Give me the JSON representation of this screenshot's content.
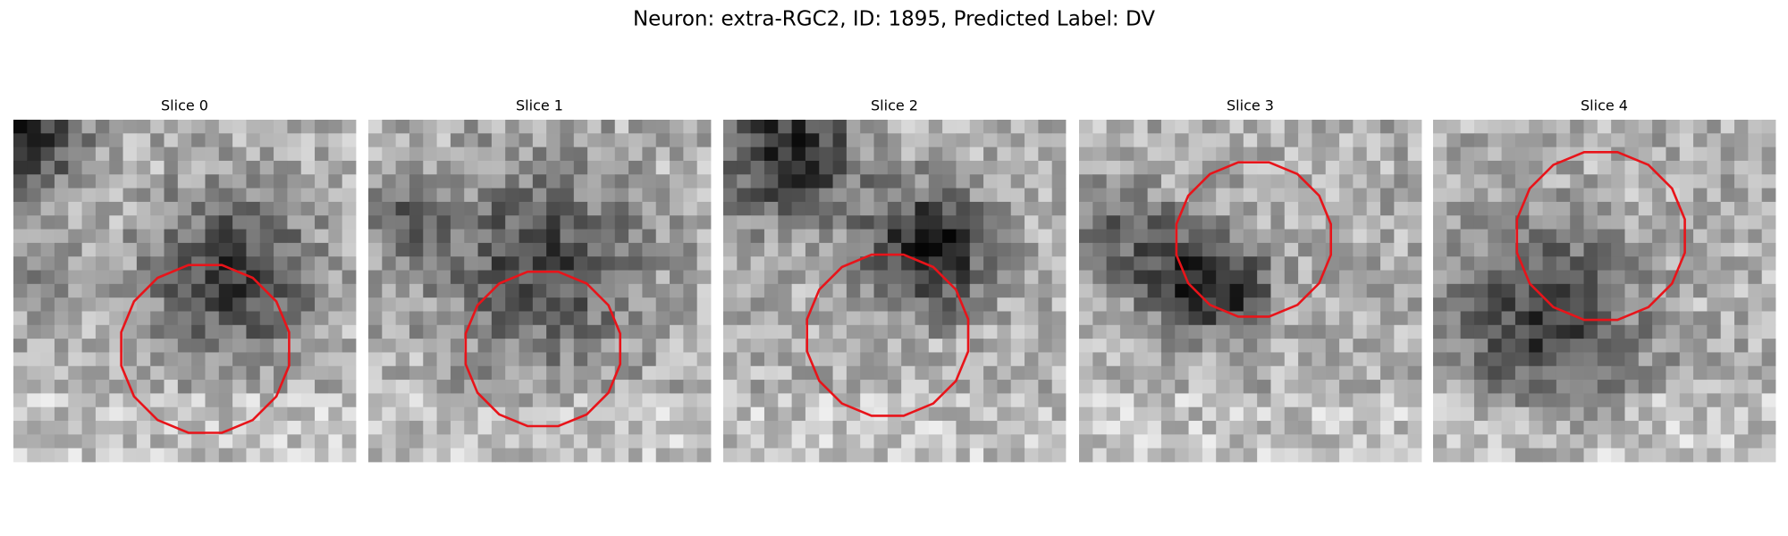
{
  "title": "Neuron: extra-RGC2, ID: 1895, Predicted Label: DV",
  "panels": [
    {
      "title": "Slice 0"
    },
    {
      "title": "Slice 1"
    },
    {
      "title": "Slice 2"
    },
    {
      "title": "Slice 3"
    },
    {
      "title": "Slice 4"
    }
  ]
}
